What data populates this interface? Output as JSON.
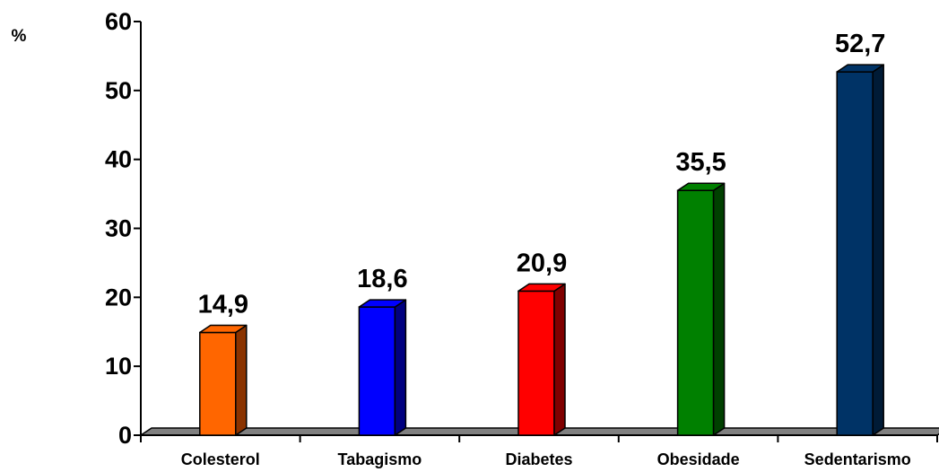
{
  "chart_data": {
    "type": "bar",
    "ylabel": "%",
    "categories": [
      "Colesterol",
      "Tabagismo",
      "Diabetes",
      "Obesidade",
      "Sedentarismo"
    ],
    "values": [
      14.9,
      18.6,
      20.9,
      35.5,
      52.7
    ],
    "value_labels": [
      "14,9",
      "18,6",
      "20,9",
      "35,5",
      "52,7"
    ],
    "ylim": [
      0,
      60
    ],
    "yticks": [
      0,
      10,
      20,
      30,
      40,
      50,
      60
    ],
    "ytick_labels": [
      "0",
      "10",
      "20",
      "30",
      "40",
      "50",
      "60"
    ],
    "grid": false,
    "bar_3d": true,
    "colors": [
      "#ff6600",
      "#0000ff",
      "#ff0000",
      "#008000",
      "#003366"
    ],
    "side_colors": [
      "#8a3300",
      "#000080",
      "#800000",
      "#004000",
      "#001b36"
    ],
    "floor_color": "#808080"
  }
}
